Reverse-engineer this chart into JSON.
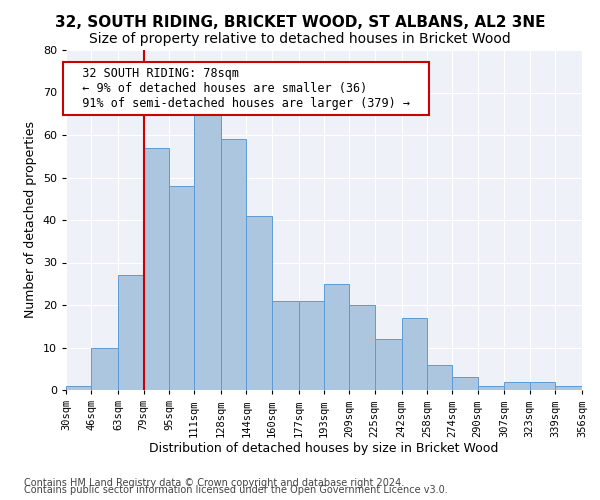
{
  "title": "32, SOUTH RIDING, BRICKET WOOD, ST ALBANS, AL2 3NE",
  "subtitle": "Size of property relative to detached houses in Bricket Wood",
  "xlabel": "Distribution of detached houses by size in Bricket Wood",
  "ylabel": "Number of detached properties",
  "footnote1": "Contains HM Land Registry data © Crown copyright and database right 2024.",
  "footnote2": "Contains public sector information licensed under the Open Government Licence v3.0.",
  "annotation_title": "32 SOUTH RIDING: 78sqm",
  "annotation_line1": "← 9% of detached houses are smaller (36)",
  "annotation_line2": "91% of semi-detached houses are larger (379) →",
  "property_size": 78,
  "bar_edges": [
    30,
    46,
    63,
    79,
    95,
    111,
    128,
    144,
    160,
    177,
    193,
    209,
    225,
    242,
    258,
    274,
    290,
    307,
    323,
    339,
    356
  ],
  "bar_values": [
    1,
    10,
    27,
    57,
    48,
    65,
    59,
    41,
    21,
    21,
    25,
    20,
    12,
    17,
    6,
    3,
    1,
    2,
    2,
    1
  ],
  "bar_color": "#adc6e0",
  "bar_edge_color": "#5b9bd5",
  "vline_color": "#cc0000",
  "vline_x": 79,
  "annotation_box_color": "#cc0000",
  "annotation_box_fill": "#ffffff",
  "background_color": "#eef2f8",
  "ylim": [
    0,
    80
  ],
  "yticks": [
    0,
    10,
    20,
    30,
    40,
    50,
    60,
    70,
    80
  ],
  "grid_color": "#ffffff",
  "title_fontsize": 11,
  "subtitle_fontsize": 10,
  "axis_label_fontsize": 9,
  "tick_fontsize": 7.5,
  "annotation_fontsize": 8.5,
  "footnote_fontsize": 7
}
